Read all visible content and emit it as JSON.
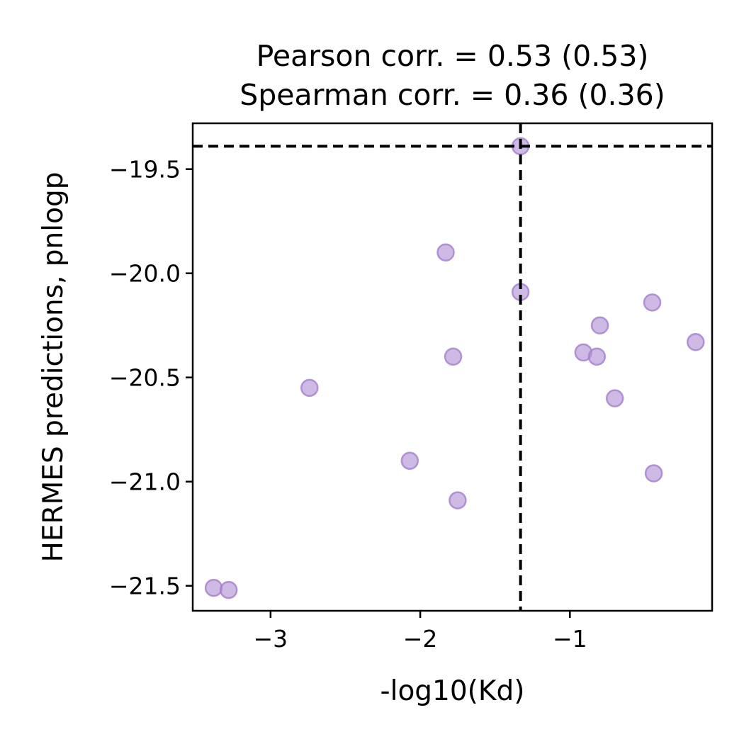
{
  "chart_data": {
    "type": "scatter",
    "title_lines": [
      "Pearson corr. = 0.53 (0.53)",
      "Spearman corr. = 0.36 (0.36)"
    ],
    "xlabel": "-log10(Kd)",
    "ylabel": "HERMES predictions, pnlogp",
    "xlim": [
      -3.52,
      -0.05
    ],
    "ylim": [
      -21.62,
      -19.28
    ],
    "xticks": [
      -3,
      -2,
      -1
    ],
    "xtick_labels": [
      "−3",
      "−2",
      "−1"
    ],
    "yticks": [
      -19.5,
      -20.0,
      -20.5,
      -21.0,
      -21.5
    ],
    "ytick_labels": [
      "−19.5",
      "−20.0",
      "−20.5",
      "−21.0",
      "−21.5"
    ],
    "grid": false,
    "point_color": "#b695d9",
    "point_edge_color": "#a17fca",
    "point_alpha": 0.65,
    "reference_lines": {
      "vertical_x": -1.33,
      "horizontal_y": -19.39,
      "style": "dashed",
      "color": "#000000"
    },
    "points": [
      {
        "x": -3.38,
        "y": -21.51
      },
      {
        "x": -3.28,
        "y": -21.52
      },
      {
        "x": -2.74,
        "y": -20.55
      },
      {
        "x": -2.07,
        "y": -20.9
      },
      {
        "x": -1.83,
        "y": -19.9
      },
      {
        "x": -1.78,
        "y": -20.4
      },
      {
        "x": -1.75,
        "y": -21.09
      },
      {
        "x": -1.33,
        "y": -19.39
      },
      {
        "x": -1.33,
        "y": -20.09
      },
      {
        "x": -0.91,
        "y": -20.38
      },
      {
        "x": -0.82,
        "y": -20.4
      },
      {
        "x": -0.8,
        "y": -20.25
      },
      {
        "x": -0.7,
        "y": -20.6
      },
      {
        "x": -0.45,
        "y": -20.14
      },
      {
        "x": -0.44,
        "y": -20.96
      },
      {
        "x": -0.16,
        "y": -20.33
      }
    ]
  }
}
